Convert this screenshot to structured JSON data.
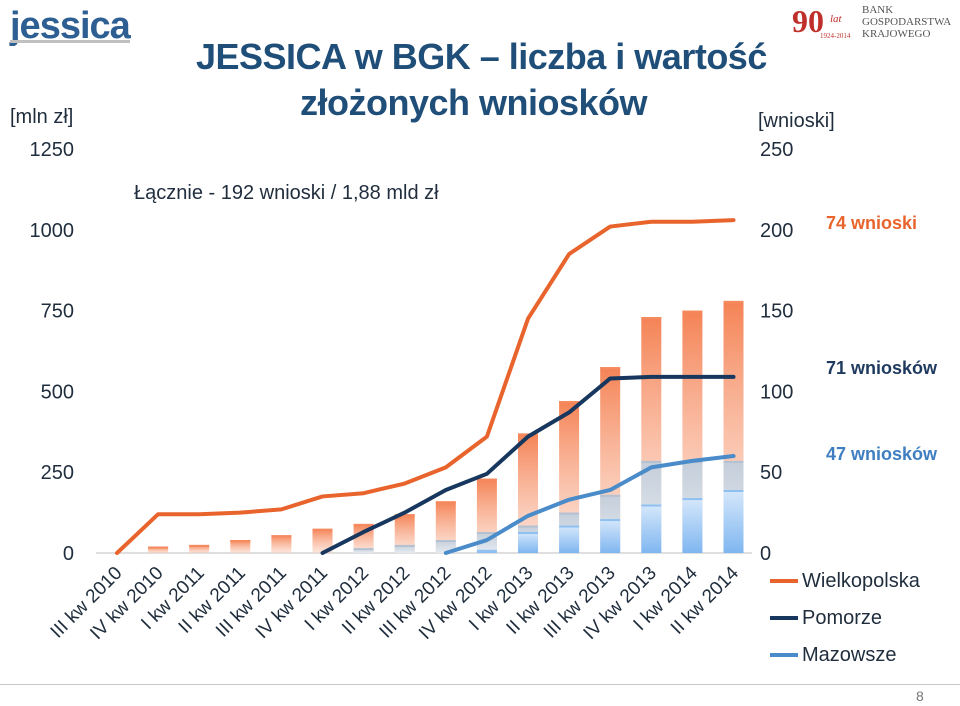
{
  "logos": {
    "left_text": "jessica",
    "right_number": "90",
    "right_years_word": "lat",
    "right_years": "1924-2014",
    "right_name": [
      "BANK",
      "GOSPODARSTWA",
      "KRAJOWEGO"
    ]
  },
  "title_line1": "JESSICA w BGK – liczba i wartość",
  "title_line2": "złożonych wniosków",
  "unit_left": "[mln zł]",
  "unit_right": "[wnioski]",
  "summary": "Łącznie  - 192 wnioski / 1,88 mld zł",
  "annotations": [
    {
      "text": "74 wnioski",
      "color": "#e8642c"
    },
    {
      "text": "71 wniosków",
      "color": "#1f3a5f"
    },
    {
      "text": "47 wniosków",
      "color": "#3f7fc1"
    }
  ],
  "slide_number": "8",
  "colors": {
    "wielkopolska": "#e8642c",
    "pomorze": "#17375e",
    "mazowsze": "#4a8bc9",
    "bar_orange": "#f58a5e",
    "bar_grey": "#b4c1d1",
    "bar_blue": "#8fc0f2"
  },
  "chart_data": {
    "type": "bar+line",
    "categories": [
      "III kw 2010",
      "IV kw 2010",
      "I kw 2011",
      "II kw 2011",
      "III kw 2011",
      "IV kw 2011",
      "I kw 2012",
      "II kw 2012",
      "III kw 2012",
      "IV kw 2012",
      "I kw 2013",
      "II kw 2013",
      "III kw 2013",
      "IV kw 2013",
      "I kw 2014",
      "II kw 2014"
    ],
    "left_axis": {
      "label": "[mln zł]",
      "range": [
        0,
        1250
      ],
      "ticks": [
        0,
        250,
        500,
        750,
        1000,
        1250
      ]
    },
    "right_axis": {
      "label": "[wnioski]",
      "range": [
        0,
        250
      ],
      "ticks": [
        0,
        50,
        100,
        150,
        200,
        250
      ]
    },
    "bars_stacked_mln_zl": [
      {
        "name": "Mazowsze",
        "values": [
          0,
          0,
          0,
          0,
          0,
          0,
          0,
          0,
          0,
          10,
          65,
          85,
          105,
          150,
          170,
          195
        ]
      },
      {
        "name": "Pomorze",
        "values": [
          0,
          0,
          0,
          0,
          0,
          0,
          15,
          25,
          40,
          65,
          85,
          125,
          180,
          285,
          285,
          285
        ]
      },
      {
        "name": "Wielkopolska",
        "values": [
          0,
          20,
          25,
          40,
          55,
          75,
          90,
          120,
          160,
          230,
          370,
          470,
          575,
          730,
          750,
          780
        ]
      }
    ],
    "lines_wnioski": [
      {
        "name": "Wielkopolska",
        "values": [
          0,
          24,
          24,
          25,
          27,
          35,
          37,
          43,
          53,
          72,
          145,
          185,
          202,
          205,
          205,
          206
        ]
      },
      {
        "name": "Pomorze",
        "values": [
          null,
          null,
          null,
          null,
          null,
          0,
          13,
          25,
          39,
          49,
          72,
          87,
          108,
          109,
          109,
          109
        ]
      },
      {
        "name": "Mazowsze",
        "values": [
          null,
          null,
          null,
          null,
          null,
          null,
          null,
          null,
          0,
          8,
          23,
          33,
          39,
          53,
          57,
          60
        ]
      }
    ],
    "legend": [
      "Wielkopolska",
      "Pomorze",
      "Mazowsze"
    ],
    "legend_position": "bottom-right"
  }
}
